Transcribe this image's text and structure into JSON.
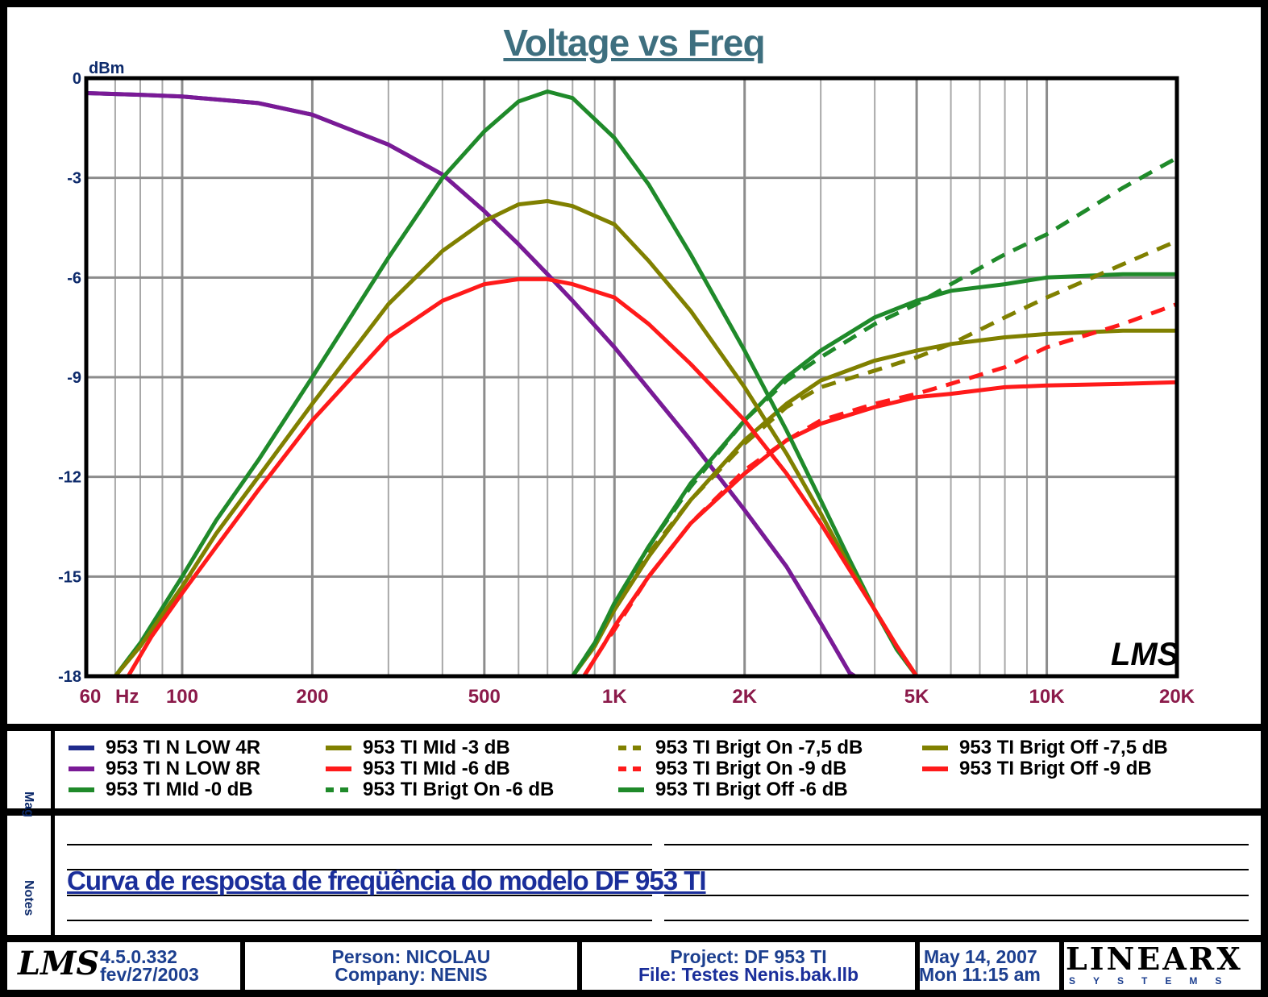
{
  "chart_data": {
    "type": "line",
    "title": "Voltage vs Freq",
    "ylabel": "dBm",
    "xlabel": "Hz",
    "xscale": "log",
    "xlim": [
      60,
      20000
    ],
    "ylim": [
      -18,
      0
    ],
    "x_ticks": [
      {
        "value": 60,
        "label": "60"
      },
      {
        "value": 100,
        "label": "100"
      },
      {
        "value": 200,
        "label": "200"
      },
      {
        "value": 500,
        "label": "500"
      },
      {
        "value": 1000,
        "label": "1K"
      },
      {
        "value": 2000,
        "label": "2K"
      },
      {
        "value": 5000,
        "label": "5K"
      },
      {
        "value": 10000,
        "label": "10K"
      },
      {
        "value": 20000,
        "label": "20K"
      }
    ],
    "y_ticks": [
      {
        "value": 0,
        "label": "0"
      },
      {
        "value": -3,
        "label": "-3"
      },
      {
        "value": -6,
        "label": "-6"
      },
      {
        "value": -9,
        "label": "-9"
      },
      {
        "value": -12,
        "label": "-12"
      },
      {
        "value": -15,
        "label": "-15"
      },
      {
        "value": -18,
        "label": "-18"
      }
    ],
    "grid": true,
    "watermark": "LMS",
    "series": [
      {
        "name": "953 TI N LOW 4R",
        "color": "#1f2a8c",
        "dash": false,
        "points": [
          [
            60,
            -0.45
          ],
          [
            80,
            -0.5
          ],
          [
            100,
            -0.55
          ],
          [
            150,
            -0.75
          ],
          [
            200,
            -1.1
          ],
          [
            300,
            -2.0
          ],
          [
            400,
            -2.9
          ],
          [
            500,
            -4.0
          ],
          [
            600,
            -5.0
          ],
          [
            700,
            -5.9
          ],
          [
            800,
            -6.7
          ],
          [
            1000,
            -8.1
          ],
          [
            1500,
            -10.9
          ],
          [
            2000,
            -13.0
          ],
          [
            2500,
            -14.7
          ],
          [
            3000,
            -16.4
          ],
          [
            3500,
            -17.9
          ],
          [
            3600,
            -18.0
          ],
          [
            5000,
            -18.0
          ]
        ]
      },
      {
        "name": "953 TI N LOW 8R",
        "color": "#7a1a96",
        "dash": false,
        "points": [
          [
            60,
            -0.45
          ],
          [
            80,
            -0.5
          ],
          [
            100,
            -0.55
          ],
          [
            150,
            -0.75
          ],
          [
            200,
            -1.1
          ],
          [
            300,
            -2.0
          ],
          [
            400,
            -2.9
          ],
          [
            500,
            -4.0
          ],
          [
            600,
            -5.0
          ],
          [
            700,
            -5.9
          ],
          [
            800,
            -6.7
          ],
          [
            1000,
            -8.1
          ],
          [
            1500,
            -10.9
          ],
          [
            2000,
            -13.0
          ],
          [
            2500,
            -14.7
          ],
          [
            3000,
            -16.4
          ],
          [
            3500,
            -17.9
          ],
          [
            3600,
            -18.0
          ],
          [
            5000,
            -18.0
          ]
        ]
      },
      {
        "name": "953 TI MId -0 dB",
        "color": "#1f8a2a",
        "dash": false,
        "points": [
          [
            60,
            -18.0
          ],
          [
            70,
            -18.0
          ],
          [
            80,
            -17.0
          ],
          [
            100,
            -15.0
          ],
          [
            120,
            -13.3
          ],
          [
            150,
            -11.5
          ],
          [
            200,
            -9.0
          ],
          [
            300,
            -5.4
          ],
          [
            400,
            -3.0
          ],
          [
            500,
            -1.6
          ],
          [
            600,
            -0.7
          ],
          [
            700,
            -0.4
          ],
          [
            800,
            -0.6
          ],
          [
            1000,
            -1.8
          ],
          [
            1200,
            -3.2
          ],
          [
            1500,
            -5.3
          ],
          [
            2000,
            -8.2
          ],
          [
            2500,
            -10.6
          ],
          [
            3000,
            -12.7
          ],
          [
            3500,
            -14.5
          ],
          [
            4000,
            -16.0
          ],
          [
            4500,
            -17.2
          ],
          [
            5000,
            -18.0
          ],
          [
            6000,
            -18.0
          ]
        ]
      },
      {
        "name": "953 TI MId -3 dB",
        "color": "#808000",
        "dash": false,
        "points": [
          [
            60,
            -18.0
          ],
          [
            70,
            -18.0
          ],
          [
            80,
            -17.1
          ],
          [
            100,
            -15.3
          ],
          [
            120,
            -13.7
          ],
          [
            150,
            -12.0
          ],
          [
            200,
            -9.8
          ],
          [
            300,
            -6.8
          ],
          [
            400,
            -5.2
          ],
          [
            500,
            -4.3
          ],
          [
            600,
            -3.8
          ],
          [
            700,
            -3.7
          ],
          [
            800,
            -3.85
          ],
          [
            1000,
            -4.4
          ],
          [
            1200,
            -5.5
          ],
          [
            1500,
            -7.0
          ],
          [
            2000,
            -9.3
          ],
          [
            2500,
            -11.3
          ],
          [
            3000,
            -13.1
          ],
          [
            3500,
            -14.7
          ],
          [
            4000,
            -16.0
          ],
          [
            4500,
            -17.1
          ],
          [
            5000,
            -18.0
          ],
          [
            6000,
            -18.0
          ]
        ]
      },
      {
        "name": "953 TI MId -6 dB",
        "color": "#ff1a1a",
        "dash": false,
        "points": [
          [
            60,
            -18.0
          ],
          [
            75,
            -18.0
          ],
          [
            85,
            -16.8
          ],
          [
            100,
            -15.5
          ],
          [
            120,
            -14.1
          ],
          [
            150,
            -12.4
          ],
          [
            200,
            -10.3
          ],
          [
            300,
            -7.8
          ],
          [
            400,
            -6.7
          ],
          [
            500,
            -6.2
          ],
          [
            600,
            -6.05
          ],
          [
            700,
            -6.05
          ],
          [
            800,
            -6.2
          ],
          [
            1000,
            -6.6
          ],
          [
            1200,
            -7.4
          ],
          [
            1500,
            -8.6
          ],
          [
            2000,
            -10.3
          ],
          [
            2500,
            -11.9
          ],
          [
            3000,
            -13.4
          ],
          [
            3500,
            -14.8
          ],
          [
            4000,
            -16.0
          ],
          [
            4500,
            -17.1
          ],
          [
            5000,
            -18.0
          ],
          [
            6000,
            -18.0
          ]
        ]
      },
      {
        "name": "953 TI Brigt On -6 dB",
        "color": "#1f8a2a",
        "dash": true,
        "points": [
          [
            800,
            -18.0
          ],
          [
            900,
            -17.0
          ],
          [
            1000,
            -15.8
          ],
          [
            1200,
            -14.1
          ],
          [
            1500,
            -12.3
          ],
          [
            2000,
            -10.3
          ],
          [
            2500,
            -9.1
          ],
          [
            3000,
            -8.4
          ],
          [
            4000,
            -7.4
          ],
          [
            5000,
            -6.8
          ],
          [
            6000,
            -6.2
          ],
          [
            8000,
            -5.3
          ],
          [
            10000,
            -4.7
          ],
          [
            15000,
            -3.3
          ],
          [
            20000,
            -2.4
          ]
        ]
      },
      {
        "name": "953 TI Brigt On -7,5 dB",
        "color": "#808000",
        "dash": true,
        "points": [
          [
            800,
            -18.0
          ],
          [
            900,
            -17.0
          ],
          [
            1000,
            -15.9
          ],
          [
            1200,
            -14.3
          ],
          [
            1500,
            -12.7
          ],
          [
            2000,
            -11.0
          ],
          [
            2500,
            -9.9
          ],
          [
            3000,
            -9.3
          ],
          [
            4000,
            -8.8
          ],
          [
            5000,
            -8.4
          ],
          [
            6000,
            -8.0
          ],
          [
            8000,
            -7.2
          ],
          [
            10000,
            -6.6
          ],
          [
            15000,
            -5.6
          ],
          [
            20000,
            -4.9
          ]
        ]
      },
      {
        "name": "953 TI Brigt On -9 dB",
        "color": "#ff1a1a",
        "dash": true,
        "points": [
          [
            850,
            -18.0
          ],
          [
            950,
            -17.0
          ],
          [
            1000,
            -16.6
          ],
          [
            1200,
            -15.0
          ],
          [
            1500,
            -13.4
          ],
          [
            2000,
            -11.8
          ],
          [
            2500,
            -10.9
          ],
          [
            3000,
            -10.3
          ],
          [
            4000,
            -9.8
          ],
          [
            5000,
            -9.5
          ],
          [
            6000,
            -9.2
          ],
          [
            8000,
            -8.7
          ],
          [
            10000,
            -8.1
          ],
          [
            15000,
            -7.4
          ],
          [
            20000,
            -6.8
          ]
        ]
      },
      {
        "name": "953 TI Brigt Off -6 dB",
        "color": "#1f8a2a",
        "dash": false,
        "points": [
          [
            800,
            -18.0
          ],
          [
            900,
            -17.0
          ],
          [
            1000,
            -15.8
          ],
          [
            1200,
            -14.1
          ],
          [
            1500,
            -12.2
          ],
          [
            2000,
            -10.3
          ],
          [
            2500,
            -9.0
          ],
          [
            3000,
            -8.2
          ],
          [
            4000,
            -7.2
          ],
          [
            5000,
            -6.7
          ],
          [
            6000,
            -6.4
          ],
          [
            8000,
            -6.2
          ],
          [
            10000,
            -6.0
          ],
          [
            15000,
            -5.9
          ],
          [
            20000,
            -5.9
          ]
        ]
      },
      {
        "name": "953 TI Brigt Off -7,5 dB",
        "color": "#808000",
        "dash": false,
        "points": [
          [
            800,
            -18.0
          ],
          [
            900,
            -17.1
          ],
          [
            1000,
            -16.0
          ],
          [
            1200,
            -14.4
          ],
          [
            1500,
            -12.7
          ],
          [
            2000,
            -10.9
          ],
          [
            2500,
            -9.8
          ],
          [
            3000,
            -9.1
          ],
          [
            4000,
            -8.5
          ],
          [
            5000,
            -8.2
          ],
          [
            6000,
            -8.0
          ],
          [
            8000,
            -7.8
          ],
          [
            10000,
            -7.7
          ],
          [
            15000,
            -7.6
          ],
          [
            20000,
            -7.6
          ]
        ]
      },
      {
        "name": "953 TI Brigt Off -9 dB",
        "color": "#ff1a1a",
        "dash": false,
        "points": [
          [
            850,
            -18.0
          ],
          [
            950,
            -17.0
          ],
          [
            1000,
            -16.5
          ],
          [
            1200,
            -15.0
          ],
          [
            1500,
            -13.4
          ],
          [
            2000,
            -11.9
          ],
          [
            2500,
            -10.9
          ],
          [
            3000,
            -10.4
          ],
          [
            4000,
            -9.9
          ],
          [
            5000,
            -9.6
          ],
          [
            6000,
            -9.5
          ],
          [
            8000,
            -9.3
          ],
          [
            10000,
            -9.25
          ],
          [
            15000,
            -9.2
          ],
          [
            20000,
            -9.15
          ]
        ]
      }
    ]
  },
  "legend": {
    "side_label": "Mag",
    "items": [
      {
        "label": "953 TI N LOW 4R",
        "color": "#1f2a8c",
        "dash": false
      },
      {
        "label": "953 TI N LOW 8R",
        "color": "#7a1a96",
        "dash": false
      },
      {
        "label": "953 TI MId -0 dB",
        "color": "#1f8a2a",
        "dash": false
      },
      {
        "label": "953 TI MId -3 dB",
        "color": "#808000",
        "dash": false
      },
      {
        "label": "953 TI MId -6 dB",
        "color": "#ff1a1a",
        "dash": false
      },
      {
        "label": "953 TI Brigt On -6 dB",
        "color": "#1f8a2a",
        "dash": true
      },
      {
        "label": "953 TI Brigt On -7,5 dB",
        "color": "#808000",
        "dash": true
      },
      {
        "label": "953 TI Brigt On -9 dB",
        "color": "#ff1a1a",
        "dash": true
      },
      {
        "label": "953 TI Brigt Off -6 dB",
        "color": "#1f8a2a",
        "dash": false
      },
      {
        "label": "953 TI Brigt Off -7,5 dB",
        "color": "#808000",
        "dash": false
      },
      {
        "label": "953 TI Brigt Off -9 dB",
        "color": "#ff1a1a",
        "dash": false
      }
    ]
  },
  "notes": {
    "side_label": "Notes",
    "text": "Curva de resposta de freqüência do modelo DF 953 TI"
  },
  "footer": {
    "logo": "LMS",
    "version": "4.5.0.332",
    "version_date": "fev/27/2003",
    "person": "Person: NICOLAU",
    "company": "Company: NENIS",
    "project": "Project: DF 953 TI",
    "file": "File: Testes Nenis.bak.llb",
    "date": "May 14, 2007",
    "time": "Mon 11:15 am",
    "brand": "LINEARX",
    "brand_sub": "SYSTEMS"
  }
}
